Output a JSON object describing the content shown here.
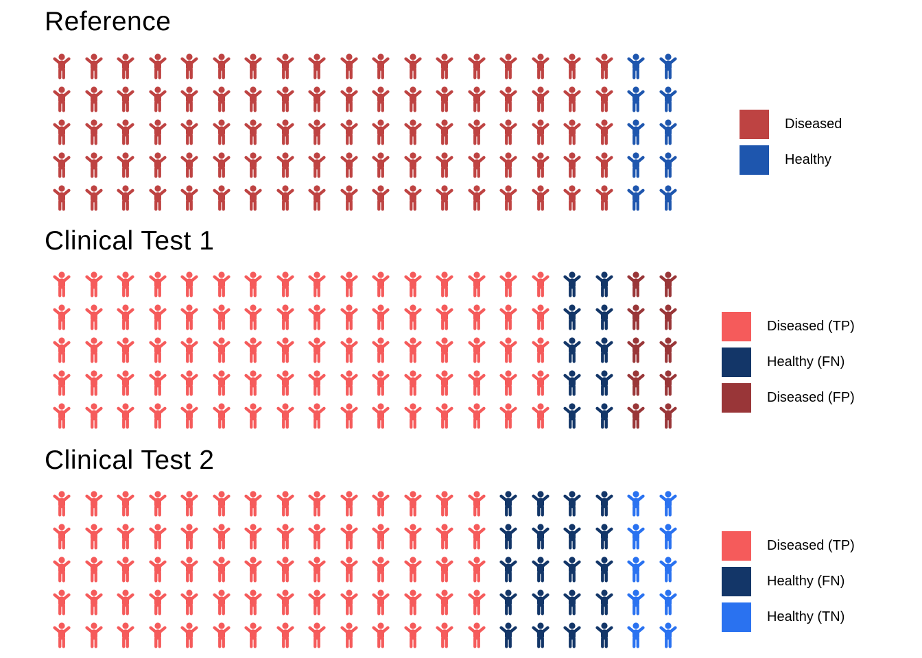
{
  "page": {
    "background": "#ffffff",
    "text_color": "#000000"
  },
  "panels": [
    {
      "title": "Reference",
      "grid": {
        "rows": 5,
        "cols": 20
      },
      "row_pattern": [
        {
          "key": "diseased",
          "label": "Diseased",
          "color": "#BE4342",
          "count": 18
        },
        {
          "key": "healthy",
          "label": "Healthy",
          "color": "#1E56AE",
          "count": 2
        }
      ],
      "legend": [
        {
          "key": "diseased",
          "label": "Diseased",
          "color": "#BE4342"
        },
        {
          "key": "healthy",
          "label": "Healthy",
          "color": "#1E56AE"
        }
      ]
    },
    {
      "title": "Clinical Test 1",
      "grid": {
        "rows": 5,
        "cols": 20
      },
      "row_pattern": [
        {
          "key": "tp",
          "label": "Diseased (TP)",
          "color": "#F55B5B",
          "count": 16
        },
        {
          "key": "fn",
          "label": "Healthy (FN)",
          "color": "#133668",
          "count": 2
        },
        {
          "key": "fp",
          "label": "Diseased (FP)",
          "color": "#993638",
          "count": 2
        }
      ],
      "legend": [
        {
          "key": "tp",
          "label": "Diseased (TP)",
          "color": "#F55B5B"
        },
        {
          "key": "fn",
          "label": "Healthy (FN)",
          "color": "#133668"
        },
        {
          "key": "fp",
          "label": "Diseased (FP)",
          "color": "#993638"
        }
      ]
    },
    {
      "title": "Clinical Test 2",
      "grid": {
        "rows": 5,
        "cols": 20
      },
      "row_pattern": [
        {
          "key": "tp",
          "label": "Diseased (TP)",
          "color": "#F55B5B",
          "count": 14
        },
        {
          "key": "fn",
          "label": "Healthy (FN)",
          "color": "#133668",
          "count": 4
        },
        {
          "key": "tn",
          "label": "Healthy (TN)",
          "color": "#2A72F0",
          "count": 2
        }
      ],
      "legend": [
        {
          "key": "tp",
          "label": "Diseased (TP)",
          "color": "#F55B5B"
        },
        {
          "key": "fn",
          "label": "Healthy (FN)",
          "color": "#133668"
        },
        {
          "key": "tn",
          "label": "Healthy (TN)",
          "color": "#2A72F0"
        }
      ]
    }
  ],
  "chart_data": [
    {
      "type": "pictogram",
      "title": "Reference",
      "icon": "person-raised-arms",
      "total_icons": 100,
      "grid": {
        "rows": 5,
        "cols": 20,
        "fill_order": "row-major"
      },
      "series": [
        {
          "name": "Diseased",
          "value": 90,
          "color": "#BE4342"
        },
        {
          "name": "Healthy",
          "value": 10,
          "color": "#1E56AE"
        }
      ],
      "legend_position": "right"
    },
    {
      "type": "pictogram",
      "title": "Clinical Test 1",
      "icon": "person-raised-arms",
      "total_icons": 100,
      "grid": {
        "rows": 5,
        "cols": 20,
        "fill_order": "row-major"
      },
      "series": [
        {
          "name": "Diseased (TP)",
          "value": 80,
          "color": "#F55B5B"
        },
        {
          "name": "Healthy (FN)",
          "value": 10,
          "color": "#133668"
        },
        {
          "name": "Diseased (FP)",
          "value": 10,
          "color": "#993638"
        }
      ],
      "legend_position": "right"
    },
    {
      "type": "pictogram",
      "title": "Clinical Test 2",
      "icon": "person-raised-arms",
      "total_icons": 100,
      "grid": {
        "rows": 5,
        "cols": 20,
        "fill_order": "row-major"
      },
      "series": [
        {
          "name": "Diseased (TP)",
          "value": 70,
          "color": "#F55B5B"
        },
        {
          "name": "Healthy (FN)",
          "value": 20,
          "color": "#133668"
        },
        {
          "name": "Healthy (TN)",
          "value": 10,
          "color": "#2A72F0"
        }
      ],
      "legend_position": "right"
    }
  ]
}
